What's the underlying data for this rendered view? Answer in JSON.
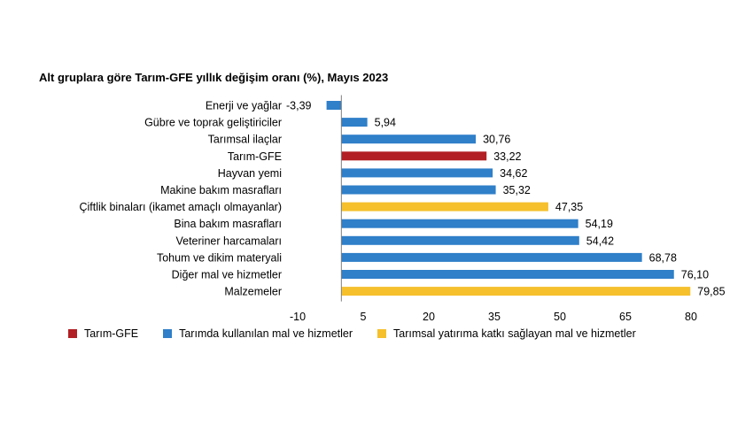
{
  "chart_data": {
    "type": "bar",
    "orientation": "horizontal",
    "title": "Alt gruplara göre Tarım-GFE yıllık değişim oranı (%), Mayıs 2023",
    "categories": [
      "Enerji ve yağlar",
      "Gübre ve toprak geliştiriciler",
      "Tarımsal ilaçlar",
      "Tarım-GFE",
      "Hayvan yemi",
      "Makine bakım masrafları",
      "Çiftlik binaları (ikamet amaçlı olmayanlar)",
      "Bina bakım masrafları",
      "Veteriner harcamaları",
      "Tohum ve dikim materyali",
      "Diğer mal ve hizmetler",
      "Malzemeler"
    ],
    "values": [
      -3.39,
      5.94,
      30.76,
      33.22,
      34.62,
      35.32,
      47.35,
      54.19,
      54.42,
      68.78,
      76.1,
      79.85
    ],
    "value_labels": [
      "-3,39",
      "5,94",
      "30,76",
      "33,22",
      "34,62",
      "35,32",
      "47,35",
      "54,19",
      "54,42",
      "68,78",
      "76,10",
      "79,85"
    ],
    "groups": [
      "input",
      "input",
      "input",
      "total",
      "input",
      "input",
      "investment",
      "input",
      "input",
      "input",
      "input",
      "investment"
    ],
    "xlim": [
      -10,
      80
    ],
    "xticks": [
      "-10",
      "5",
      "20",
      "35",
      "50",
      "65",
      "80"
    ],
    "xtick_values": [
      -10,
      5,
      20,
      35,
      50,
      65,
      80
    ],
    "grid": false,
    "legend": [
      {
        "key": "total",
        "label": "Tarım-GFE",
        "color": "#b21f24"
      },
      {
        "key": "input",
        "label": "Tarımda kullanılan mal ve hizmetler",
        "color": "#2f7fc9"
      },
      {
        "key": "investment",
        "label": "Tarımsal yatırıma katkı sağlayan mal ve hizmetler",
        "color": "#f5c02c"
      }
    ],
    "legend_position": "bottom"
  }
}
